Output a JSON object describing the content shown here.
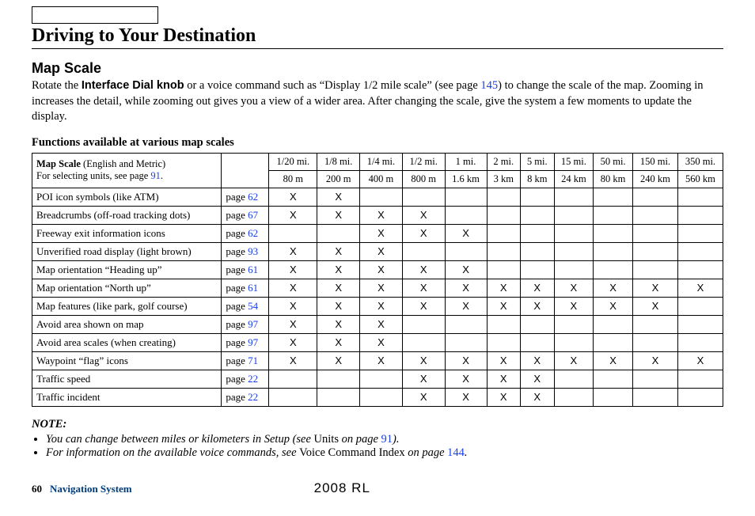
{
  "heading": "Driving to Your Destination",
  "subheading": "Map Scale",
  "intro": {
    "part1": "Rotate the ",
    "bold": "Interface Dial knob",
    "part2": " or a voice command such as “Display 1/2 mile scale” (see page ",
    "link1": "145",
    "part3": ") to change the scale of the map. Zooming in increases the detail, while zooming out gives you a view of a wider area. After changing the scale, give the system a few moments to update the display."
  },
  "table_caption": "Functions available at various map scales",
  "header_cell": {
    "line1a": "Map Scale",
    "line1b": " (English and Metric)",
    "line2a": "For selecting units, see page ",
    "line2b": "91",
    "line2c": "."
  },
  "scales_top": [
    "1/20 mi.",
    "1/8 mi.",
    "1/4 mi.",
    "1/2 mi.",
    "1 mi.",
    "2 mi.",
    "5 mi.",
    "15 mi.",
    "50 mi.",
    "150 mi.",
    "350 mi."
  ],
  "scales_bottom": [
    "80 m",
    "200 m",
    "400 m",
    "800 m",
    "1.6 km",
    "3 km",
    "8 km",
    "24 km",
    "80 km",
    "240 km",
    "560 km"
  ],
  "rows": [
    {
      "label": "POI icon symbols (like ATM)",
      "page": "62",
      "marks": [
        1,
        1,
        0,
        0,
        0,
        0,
        0,
        0,
        0,
        0,
        0
      ]
    },
    {
      "label": "Breadcrumbs (off-road tracking dots)",
      "page": "67",
      "marks": [
        1,
        1,
        1,
        1,
        0,
        0,
        0,
        0,
        0,
        0,
        0
      ]
    },
    {
      "label": "Freeway exit information icons",
      "page": "62",
      "marks": [
        0,
        0,
        1,
        1,
        1,
        0,
        0,
        0,
        0,
        0,
        0
      ]
    },
    {
      "label": "Unverified road display (light brown)",
      "page": "93",
      "marks": [
        1,
        1,
        1,
        0,
        0,
        0,
        0,
        0,
        0,
        0,
        0
      ]
    },
    {
      "label": "Map orientation “Heading up”",
      "page": "61",
      "marks": [
        1,
        1,
        1,
        1,
        1,
        0,
        0,
        0,
        0,
        0,
        0
      ]
    },
    {
      "label": "Map orientation “North up”",
      "page": "61",
      "marks": [
        1,
        1,
        1,
        1,
        1,
        1,
        1,
        1,
        1,
        1,
        1
      ]
    },
    {
      "label": "Map features (like park, golf course)",
      "page": "54",
      "marks": [
        1,
        1,
        1,
        1,
        1,
        1,
        1,
        1,
        1,
        1,
        0
      ]
    },
    {
      "label": "Avoid area shown on map",
      "page": "97",
      "marks": [
        1,
        1,
        1,
        0,
        0,
        0,
        0,
        0,
        0,
        0,
        0
      ]
    },
    {
      "label": "Avoid area scales (when creating)",
      "page": "97",
      "marks": [
        1,
        1,
        1,
        0,
        0,
        0,
        0,
        0,
        0,
        0,
        0
      ]
    },
    {
      "label": "Waypoint “flag” icons",
      "page": "71",
      "marks": [
        1,
        1,
        1,
        1,
        1,
        1,
        1,
        1,
        1,
        1,
        1
      ]
    },
    {
      "label": "Traffic speed",
      "page": "22",
      "marks": [
        0,
        0,
        0,
        1,
        1,
        1,
        1,
        0,
        0,
        0,
        0
      ]
    },
    {
      "label": "Traffic incident",
      "page": "22",
      "marks": [
        0,
        0,
        0,
        1,
        1,
        1,
        1,
        0,
        0,
        0,
        0
      ]
    }
  ],
  "page_word": "page ",
  "note_label": "NOTE:",
  "notes": [
    {
      "pre": "You can change between miles or kilometers in Setup (see ",
      "roman": "Units",
      "mid": " on page ",
      "link": "91",
      "post": ")."
    },
    {
      "pre": "For information on the available voice commands, see ",
      "roman": "Voice Command Index",
      "mid": " on page ",
      "link": "144",
      "post": "."
    }
  ],
  "footer": {
    "page_num": "60",
    "system": "Navigation System",
    "model": "2008  RL"
  }
}
